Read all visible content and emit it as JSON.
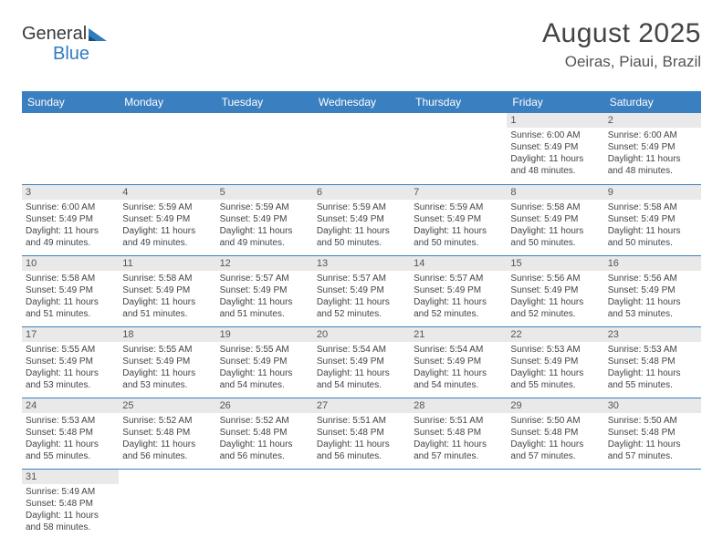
{
  "brand": {
    "part1": "General",
    "part2": "Blue"
  },
  "title": {
    "month_year": "August 2025",
    "location": "Oeiras, Piaui, Brazil"
  },
  "colors": {
    "header_bg": "#3a7fc0",
    "daynum_bg": "#e9e9e9",
    "row_sep": "#3a7fc0"
  },
  "weekdays": [
    "Sunday",
    "Monday",
    "Tuesday",
    "Wednesday",
    "Thursday",
    "Friday",
    "Saturday"
  ],
  "weeks": [
    [
      null,
      null,
      null,
      null,
      null,
      {
        "day": "1",
        "sunrise": "Sunrise: 6:00 AM",
        "sunset": "Sunset: 5:49 PM",
        "daylight1": "Daylight: 11 hours",
        "daylight2": "and 48 minutes."
      },
      {
        "day": "2",
        "sunrise": "Sunrise: 6:00 AM",
        "sunset": "Sunset: 5:49 PM",
        "daylight1": "Daylight: 11 hours",
        "daylight2": "and 48 minutes."
      }
    ],
    [
      {
        "day": "3",
        "sunrise": "Sunrise: 6:00 AM",
        "sunset": "Sunset: 5:49 PM",
        "daylight1": "Daylight: 11 hours",
        "daylight2": "and 49 minutes."
      },
      {
        "day": "4",
        "sunrise": "Sunrise: 5:59 AM",
        "sunset": "Sunset: 5:49 PM",
        "daylight1": "Daylight: 11 hours",
        "daylight2": "and 49 minutes."
      },
      {
        "day": "5",
        "sunrise": "Sunrise: 5:59 AM",
        "sunset": "Sunset: 5:49 PM",
        "daylight1": "Daylight: 11 hours",
        "daylight2": "and 49 minutes."
      },
      {
        "day": "6",
        "sunrise": "Sunrise: 5:59 AM",
        "sunset": "Sunset: 5:49 PM",
        "daylight1": "Daylight: 11 hours",
        "daylight2": "and 50 minutes."
      },
      {
        "day": "7",
        "sunrise": "Sunrise: 5:59 AM",
        "sunset": "Sunset: 5:49 PM",
        "daylight1": "Daylight: 11 hours",
        "daylight2": "and 50 minutes."
      },
      {
        "day": "8",
        "sunrise": "Sunrise: 5:58 AM",
        "sunset": "Sunset: 5:49 PM",
        "daylight1": "Daylight: 11 hours",
        "daylight2": "and 50 minutes."
      },
      {
        "day": "9",
        "sunrise": "Sunrise: 5:58 AM",
        "sunset": "Sunset: 5:49 PM",
        "daylight1": "Daylight: 11 hours",
        "daylight2": "and 50 minutes."
      }
    ],
    [
      {
        "day": "10",
        "sunrise": "Sunrise: 5:58 AM",
        "sunset": "Sunset: 5:49 PM",
        "daylight1": "Daylight: 11 hours",
        "daylight2": "and 51 minutes."
      },
      {
        "day": "11",
        "sunrise": "Sunrise: 5:58 AM",
        "sunset": "Sunset: 5:49 PM",
        "daylight1": "Daylight: 11 hours",
        "daylight2": "and 51 minutes."
      },
      {
        "day": "12",
        "sunrise": "Sunrise: 5:57 AM",
        "sunset": "Sunset: 5:49 PM",
        "daylight1": "Daylight: 11 hours",
        "daylight2": "and 51 minutes."
      },
      {
        "day": "13",
        "sunrise": "Sunrise: 5:57 AM",
        "sunset": "Sunset: 5:49 PM",
        "daylight1": "Daylight: 11 hours",
        "daylight2": "and 52 minutes."
      },
      {
        "day": "14",
        "sunrise": "Sunrise: 5:57 AM",
        "sunset": "Sunset: 5:49 PM",
        "daylight1": "Daylight: 11 hours",
        "daylight2": "and 52 minutes."
      },
      {
        "day": "15",
        "sunrise": "Sunrise: 5:56 AM",
        "sunset": "Sunset: 5:49 PM",
        "daylight1": "Daylight: 11 hours",
        "daylight2": "and 52 minutes."
      },
      {
        "day": "16",
        "sunrise": "Sunrise: 5:56 AM",
        "sunset": "Sunset: 5:49 PM",
        "daylight1": "Daylight: 11 hours",
        "daylight2": "and 53 minutes."
      }
    ],
    [
      {
        "day": "17",
        "sunrise": "Sunrise: 5:55 AM",
        "sunset": "Sunset: 5:49 PM",
        "daylight1": "Daylight: 11 hours",
        "daylight2": "and 53 minutes."
      },
      {
        "day": "18",
        "sunrise": "Sunrise: 5:55 AM",
        "sunset": "Sunset: 5:49 PM",
        "daylight1": "Daylight: 11 hours",
        "daylight2": "and 53 minutes."
      },
      {
        "day": "19",
        "sunrise": "Sunrise: 5:55 AM",
        "sunset": "Sunset: 5:49 PM",
        "daylight1": "Daylight: 11 hours",
        "daylight2": "and 54 minutes."
      },
      {
        "day": "20",
        "sunrise": "Sunrise: 5:54 AM",
        "sunset": "Sunset: 5:49 PM",
        "daylight1": "Daylight: 11 hours",
        "daylight2": "and 54 minutes."
      },
      {
        "day": "21",
        "sunrise": "Sunrise: 5:54 AM",
        "sunset": "Sunset: 5:49 PM",
        "daylight1": "Daylight: 11 hours",
        "daylight2": "and 54 minutes."
      },
      {
        "day": "22",
        "sunrise": "Sunrise: 5:53 AM",
        "sunset": "Sunset: 5:49 PM",
        "daylight1": "Daylight: 11 hours",
        "daylight2": "and 55 minutes."
      },
      {
        "day": "23",
        "sunrise": "Sunrise: 5:53 AM",
        "sunset": "Sunset: 5:48 PM",
        "daylight1": "Daylight: 11 hours",
        "daylight2": "and 55 minutes."
      }
    ],
    [
      {
        "day": "24",
        "sunrise": "Sunrise: 5:53 AM",
        "sunset": "Sunset: 5:48 PM",
        "daylight1": "Daylight: 11 hours",
        "daylight2": "and 55 minutes."
      },
      {
        "day": "25",
        "sunrise": "Sunrise: 5:52 AM",
        "sunset": "Sunset: 5:48 PM",
        "daylight1": "Daylight: 11 hours",
        "daylight2": "and 56 minutes."
      },
      {
        "day": "26",
        "sunrise": "Sunrise: 5:52 AM",
        "sunset": "Sunset: 5:48 PM",
        "daylight1": "Daylight: 11 hours",
        "daylight2": "and 56 minutes."
      },
      {
        "day": "27",
        "sunrise": "Sunrise: 5:51 AM",
        "sunset": "Sunset: 5:48 PM",
        "daylight1": "Daylight: 11 hours",
        "daylight2": "and 56 minutes."
      },
      {
        "day": "28",
        "sunrise": "Sunrise: 5:51 AM",
        "sunset": "Sunset: 5:48 PM",
        "daylight1": "Daylight: 11 hours",
        "daylight2": "and 57 minutes."
      },
      {
        "day": "29",
        "sunrise": "Sunrise: 5:50 AM",
        "sunset": "Sunset: 5:48 PM",
        "daylight1": "Daylight: 11 hours",
        "daylight2": "and 57 minutes."
      },
      {
        "day": "30",
        "sunrise": "Sunrise: 5:50 AM",
        "sunset": "Sunset: 5:48 PM",
        "daylight1": "Daylight: 11 hours",
        "daylight2": "and 57 minutes."
      }
    ],
    [
      {
        "day": "31",
        "sunrise": "Sunrise: 5:49 AM",
        "sunset": "Sunset: 5:48 PM",
        "daylight1": "Daylight: 11 hours",
        "daylight2": "and 58 minutes."
      },
      null,
      null,
      null,
      null,
      null,
      null
    ]
  ]
}
